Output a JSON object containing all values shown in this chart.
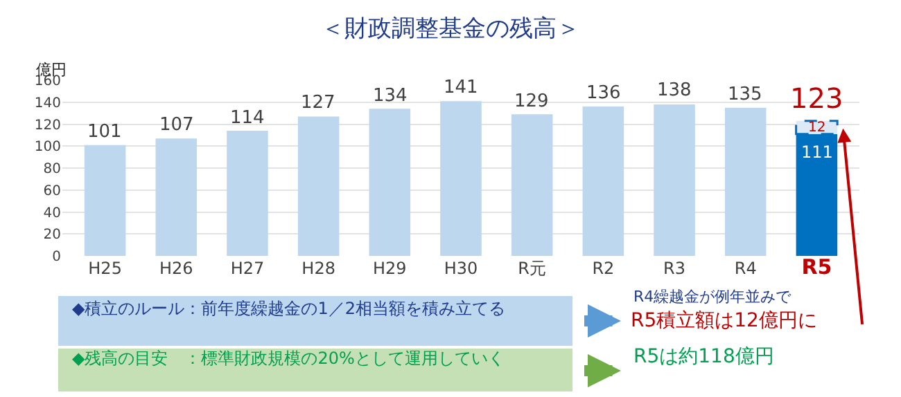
{
  "chart_data": {
    "type": "bar",
    "stacked": true,
    "title": "＜財政調整基金の残高＞",
    "ylabel": "億円",
    "categories": [
      "H25",
      "H26",
      "H27",
      "H28",
      "H29",
      "H30",
      "R元",
      "R2",
      "R3",
      "R4",
      "R5"
    ],
    "series": [
      {
        "color": "#bdd7ee",
        "colors": [
          "#bdd7ee",
          "#bdd7ee",
          "#bdd7ee",
          "#bdd7ee",
          "#bdd7ee",
          "#bdd7ee",
          "#bdd7ee",
          "#bdd7ee",
          "#bdd7ee",
          "#bdd7ee",
          "#0070c0"
        ],
        "values": [
          101,
          107,
          114,
          127,
          134,
          141,
          129,
          136,
          138,
          135,
          111
        ],
        "value_labels": [
          "101",
          "107",
          "114",
          "127",
          "134",
          "141",
          "129",
          "136",
          "138",
          "135",
          "111"
        ]
      },
      {
        "color": "#dde9f5",
        "line_style": "dashed",
        "values": [
          null,
          null,
          null,
          null,
          null,
          null,
          null,
          null,
          null,
          null,
          12
        ],
        "value_labels": [
          null,
          null,
          null,
          null,
          null,
          null,
          null,
          null,
          null,
          null,
          "12"
        ]
      }
    ],
    "totals": [
      null,
      null,
      null,
      null,
      null,
      null,
      null,
      null,
      null,
      null,
      "123"
    ],
    "ylim": [
      0,
      160
    ],
    "yticks": [
      0,
      20,
      40,
      60,
      80,
      100,
      120,
      140,
      160
    ],
    "grid": "y",
    "annotations": [
      "◆積立のルール：前年度繰越金の1／2相当額を積み立てる",
      "R4繰越金が例年並みで",
      "R5積立額は12億円に",
      "◆残高の目安　：標準財政規模の20%として運用していく",
      "R5は約118億円"
    ]
  }
}
